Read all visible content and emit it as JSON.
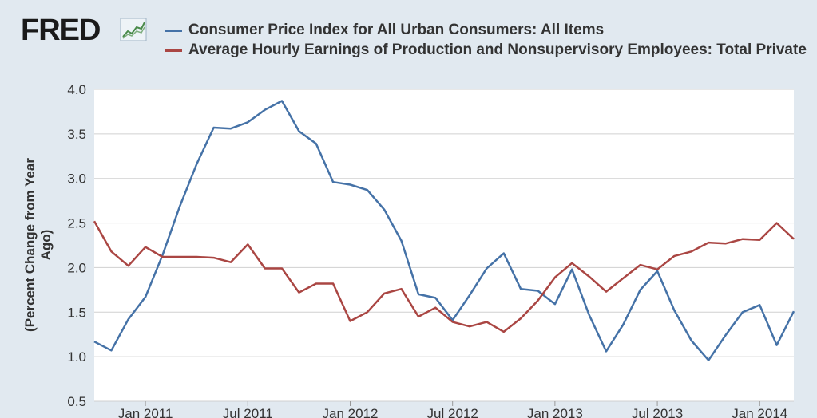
{
  "logo": {
    "text": "FRED",
    "icon": "chart-line-icon"
  },
  "chart_data": {
    "type": "line",
    "ylabel": "(Percent Change from Year Ago)",
    "xlabel": "",
    "ylim": [
      0.5,
      4.0
    ],
    "yticks": [
      "0.5",
      "1.0",
      "1.5",
      "2.0",
      "2.5",
      "3.0",
      "3.5",
      "4.0"
    ],
    "xticks": [
      "Jan 2011",
      "Jul 2011",
      "Jan 2012",
      "Jul 2012",
      "Jan 2013",
      "Jul 2013",
      "Jan 2014"
    ],
    "x": [
      "2010-10",
      "2010-11",
      "2010-12",
      "2011-01",
      "2011-02",
      "2011-03",
      "2011-04",
      "2011-05",
      "2011-06",
      "2011-07",
      "2011-08",
      "2011-09",
      "2011-10",
      "2011-11",
      "2011-12",
      "2012-01",
      "2012-02",
      "2012-03",
      "2012-04",
      "2012-05",
      "2012-06",
      "2012-07",
      "2012-08",
      "2012-09",
      "2012-10",
      "2012-11",
      "2012-12",
      "2013-01",
      "2013-02",
      "2013-03",
      "2013-04",
      "2013-05",
      "2013-06",
      "2013-07",
      "2013-08",
      "2013-09",
      "2013-10",
      "2013-11",
      "2013-12",
      "2014-01",
      "2014-02",
      "2014-03"
    ],
    "grid": true,
    "legend_position": "top",
    "series": [
      {
        "name": "Consumer Price Index for All Urban Consumers: All Items",
        "color": "#4572a7",
        "values": [
          1.17,
          1.07,
          1.42,
          1.67,
          2.14,
          2.68,
          3.16,
          3.57,
          3.56,
          3.63,
          3.77,
          3.87,
          3.53,
          3.39,
          2.96,
          2.93,
          2.87,
          2.65,
          2.3,
          1.7,
          1.66,
          1.41,
          1.69,
          1.99,
          2.16,
          1.76,
          1.74,
          1.59,
          1.98,
          1.47,
          1.06,
          1.36,
          1.75,
          1.96,
          1.52,
          1.18,
          0.96,
          1.24,
          1.5,
          1.58,
          1.13,
          1.51
        ]
      },
      {
        "name": "Average Hourly Earnings of Production and Nonsupervisory Employees: Total Private",
        "color": "#aa4643",
        "values": [
          2.52,
          2.18,
          2.02,
          2.23,
          2.12,
          2.12,
          2.12,
          2.11,
          2.06,
          2.26,
          1.99,
          1.99,
          1.72,
          1.82,
          1.82,
          1.4,
          1.5,
          1.71,
          1.76,
          1.45,
          1.55,
          1.39,
          1.34,
          1.39,
          1.28,
          1.43,
          1.63,
          1.89,
          2.05,
          1.9,
          1.73,
          1.88,
          2.03,
          1.98,
          2.13,
          2.18,
          2.28,
          2.27,
          2.32,
          2.31,
          2.5,
          2.32
        ]
      }
    ]
  }
}
